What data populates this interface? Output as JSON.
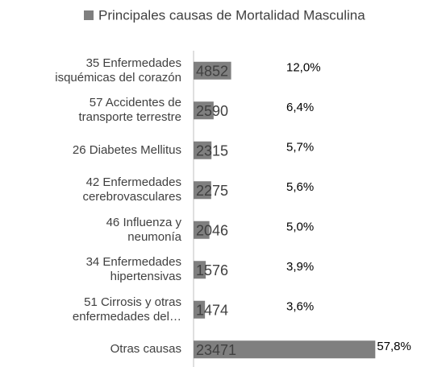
{
  "chart_data": {
    "type": "bar",
    "orientation": "horizontal",
    "categories": [
      "35 Enfermedades\nisquémicas del corazón",
      "57 Accidentes de\ntransporte terrestre",
      "26 Diabetes Mellitus",
      "42 Enfermedades\ncerebrovasculares",
      "46 Influenza y\nneumonía",
      "34 Enfermedades\nhipertensivas",
      "51 Cirrosis y otras\nenfermedades del…",
      "Otras causas"
    ],
    "series": [
      {
        "name": "Principales causas de Mortalidad Masculina",
        "color": "#7f7f7f",
        "values": [
          4852,
          2590,
          2315,
          2275,
          2046,
          1576,
          1474,
          23471
        ]
      }
    ],
    "percent_labels": [
      "12,0%",
      "6,4%",
      "5,7%",
      "5,6%",
      "5,0%",
      "3,9%",
      "3,6%",
      "57,8%"
    ],
    "xlim": [
      0,
      25000
    ]
  }
}
